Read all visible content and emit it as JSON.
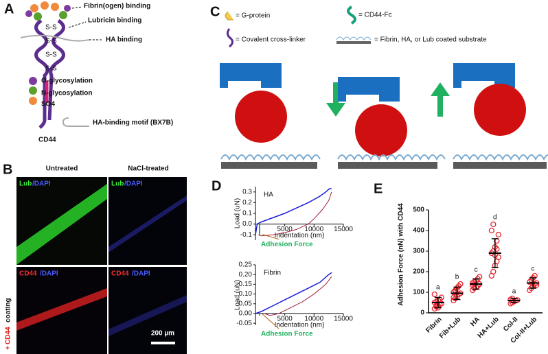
{
  "panel_a": {
    "label": "A",
    "binding_labels": [
      "Fibrin(ogen) binding",
      "Lubricin binding",
      "HA binding"
    ],
    "disulfide": "S-S",
    "legend": [
      "O-glycosylation",
      "N-glycosylation",
      "SO4",
      "HA-binding motif (BX7B)"
    ],
    "molecule": "CD44"
  },
  "panel_b": {
    "label": "B",
    "columns": [
      "Untreated",
      "NaCl-treated"
    ],
    "stain_top": {
      "marker": "Lub",
      "counter": "/DAPI"
    },
    "stain_bottom": {
      "marker": "CD44",
      "counter": "/DAPI"
    },
    "side_label": {
      "prefix": "+",
      "marker": "CD44",
      "suffix": "coating"
    },
    "scale_bar": "200 µm"
  },
  "panel_c": {
    "label": "C",
    "legend": [
      "= G-protein",
      "= Covalent cross-linker",
      "= CD44-Fc",
      "= Fibrin, HA, or Lub coated substrate"
    ]
  },
  "chart_data": [
    {
      "type": "line",
      "panel_label": "D",
      "title": "HA",
      "xlabel": "Indentation (nm)",
      "ylabel": "Load (uN)",
      "annotation": "Adhesion Force",
      "xlim": [
        0,
        15000
      ],
      "xticks": [
        5000,
        10000,
        15000
      ],
      "ylim": [
        -0.15,
        0.35
      ],
      "yticks": [
        -0.1,
        {
          "value": 0,
          "label": "0.0"
        },
        0.1,
        0.2,
        0.3
      ],
      "series": [
        {
          "color": "#1a1adb",
          "x": [
            0,
            300,
            1000,
            3000,
            5000,
            7000,
            9000,
            11000,
            12000,
            12600,
            13000
          ],
          "values": [
            -0.1,
            0,
            0.02,
            0.06,
            0.1,
            0.15,
            0.2,
            0.26,
            0.3,
            0.33,
            0.33
          ]
        },
        {
          "color": "#a0203a",
          "x": [
            13000,
            12500,
            11500,
            10000,
            9000,
            7000,
            5000,
            3000,
            1000,
            500
          ],
          "values": [
            0.3,
            0.22,
            0.14,
            0.05,
            0,
            -0.05,
            -0.08,
            -0.1,
            -0.11,
            -0.1
          ]
        }
      ]
    },
    {
      "type": "line",
      "title": "Fibrin",
      "xlabel": "Indentation (nm)",
      "ylabel": "Load (uN)",
      "annotation": "Adhesion Force",
      "xlim": [
        0,
        15000
      ],
      "xticks": [
        5000,
        10000,
        15000
      ],
      "ylim": [
        -0.06,
        0.25
      ],
      "yticks": [
        -0.05,
        {
          "value": 0,
          "label": "0.00"
        },
        0.05,
        {
          "value": 0.1,
          "label": "0.10"
        },
        0.15,
        {
          "value": 0.2,
          "label": "0.20"
        },
        0.25
      ],
      "series": [
        {
          "color": "#1a1adb",
          "x": [
            0,
            1000,
            3000,
            5000,
            7000,
            9000,
            11000,
            12500,
            13000
          ],
          "values": [
            0,
            0.01,
            0.04,
            0.07,
            0.1,
            0.13,
            0.16,
            0.2,
            0.21
          ]
        },
        {
          "color": "#a0203a",
          "x": [
            13000,
            12000,
            10000,
            8000,
            6000,
            4000,
            2500,
            1500
          ],
          "values": [
            0.19,
            0.15,
            0.1,
            0.06,
            0.03,
            0,
            -0.01,
            0
          ]
        }
      ]
    },
    {
      "type": "dotplot",
      "panel_label": "E",
      "ylabel": "Adhesion Force (nN) with CD44",
      "color": "#e8212a",
      "categories": [
        "Fibrin",
        "Fib+Lub",
        "HA",
        "HA+Lub",
        "Col-II",
        "Col-II+Lub"
      ],
      "values": [
        50,
        95,
        140,
        290,
        60,
        145
      ],
      "errors": [
        25,
        30,
        25,
        70,
        10,
        25
      ],
      "annotations": [
        "a",
        "b",
        "c",
        "d",
        "a",
        "c"
      ],
      "points": [
        [
          20,
          30,
          35,
          40,
          45,
          50,
          55,
          60,
          65,
          75,
          90,
          35,
          25
        ],
        [
          60,
          70,
          80,
          90,
          95,
          100,
          110,
          120,
          130,
          140,
          75,
          105
        ],
        [
          110,
          120,
          125,
          130,
          140,
          145,
          150,
          155,
          165,
          175,
          135
        ],
        [
          180,
          200,
          230,
          250,
          270,
          290,
          300,
          320,
          350,
          380,
          400,
          430,
          280,
          310
        ],
        [
          45,
          50,
          55,
          60,
          62,
          65,
          70,
          58
        ],
        [
          110,
          120,
          130,
          140,
          145,
          150,
          160,
          170,
          180,
          135
        ]
      ],
      "ylim": [
        0,
        500
      ],
      "yticks": [
        0,
        100,
        200,
        300,
        400,
        500
      ]
    }
  ]
}
